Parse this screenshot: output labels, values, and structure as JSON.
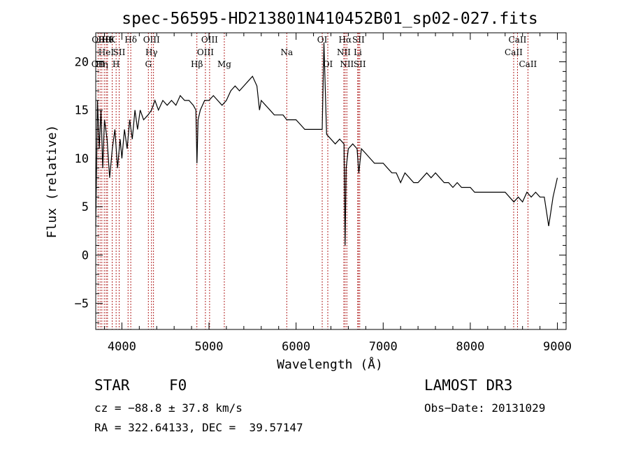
{
  "chart_data": {
    "type": "line",
    "title": "spec-56595-HD213801N410452B01_sp02-027.fits",
    "xlabel": "Wavelength (Å)",
    "ylabel": "Flux (relative)",
    "xlim": [
      3700,
      9100
    ],
    "ylim": [
      -7.7,
      23
    ],
    "xticks": [
      4000,
      5000,
      6000,
      7000,
      8000,
      9000
    ],
    "xtick_labels": [
      "4000",
      "5000",
      "6000",
      "7000",
      "8000",
      "9000"
    ],
    "yticks": [
      -5,
      0,
      5,
      10,
      15,
      20
    ],
    "ytick_labels": [
      "−5",
      "0",
      "5",
      "10",
      "15",
      "20"
    ],
    "grid": false,
    "series": [
      {
        "name": "flux",
        "x": [
          3700,
          3720,
          3740,
          3760,
          3780,
          3800,
          3830,
          3860,
          3890,
          3920,
          3950,
          3980,
          4000,
          4030,
          4060,
          4090,
          4120,
          4150,
          4180,
          4210,
          4250,
          4300,
          4340,
          4380,
          4420,
          4470,
          4520,
          4570,
          4620,
          4670,
          4720,
          4770,
          4820,
          4850,
          4862,
          4875,
          4900,
          4950,
          5000,
          5050,
          5100,
          5150,
          5200,
          5250,
          5300,
          5350,
          5400,
          5450,
          5500,
          5550,
          5580,
          5600,
          5650,
          5700,
          5750,
          5800,
          5850,
          5893,
          5950,
          6000,
          6050,
          6100,
          6150,
          6200,
          6250,
          6300,
          6320,
          6350,
          6400,
          6450,
          6500,
          6550,
          6563,
          6575,
          6600,
          6650,
          6700,
          6720,
          6750,
          6800,
          6850,
          6900,
          6950,
          7000,
          7050,
          7100,
          7150,
          7200,
          7250,
          7300,
          7350,
          7400,
          7450,
          7500,
          7550,
          7600,
          7650,
          7700,
          7750,
          7800,
          7850,
          7900,
          7950,
          8000,
          8050,
          8100,
          8150,
          8200,
          8250,
          8300,
          8350,
          8400,
          8450,
          8500,
          8550,
          8600,
          8650,
          8700,
          8750,
          8800,
          8850,
          8900,
          8950,
          9000
        ],
        "values": [
          3,
          16,
          11,
          15,
          9,
          14,
          12,
          8,
          11,
          13,
          9,
          12,
          10,
          13,
          11,
          14,
          12,
          15,
          13,
          15,
          14,
          14.5,
          15,
          16,
          15,
          16,
          15.5,
          16,
          15.5,
          16.5,
          16,
          16,
          15.5,
          15,
          9.5,
          14,
          15,
          16,
          16,
          16.5,
          16,
          15.5,
          16,
          17,
          17.5,
          17,
          17.5,
          18,
          18.5,
          17.5,
          15,
          16,
          15.5,
          15,
          14.5,
          14.5,
          14.5,
          14,
          14,
          14,
          13.5,
          13,
          13,
          13,
          13,
          13,
          22,
          12.5,
          12,
          11.5,
          12,
          11.5,
          1,
          9,
          11,
          11.5,
          11,
          8.5,
          11,
          10.5,
          10,
          9.5,
          9.5,
          9.5,
          9,
          8.5,
          8.5,
          7.5,
          8.5,
          8,
          7.5,
          7.5,
          8,
          8.5,
          8,
          8.5,
          8,
          7.5,
          7.5,
          7,
          7.5,
          7,
          7,
          7,
          6.5,
          6.5,
          6.5,
          6.5,
          6.5,
          6.5,
          6.5,
          6.5,
          6,
          5.5,
          6,
          5.5,
          6.5,
          6,
          6.5,
          6,
          6,
          3,
          6,
          8
        ]
      }
    ],
    "lines": [
      {
        "x": 3727,
        "labels": [
          "OII"
        ],
        "rows": [
          2
        ]
      },
      {
        "x": 3750,
        "labels": [
          "OIII"
        ],
        "rows": [
          0
        ]
      },
      {
        "x": 3770,
        "labels": [
          "Hη"
        ],
        "rows": [
          2
        ]
      },
      {
        "x": 3798,
        "labels": [
          "Hθ"
        ],
        "rows": [
          0
        ]
      },
      {
        "x": 3820,
        "labels": [
          "HeI"
        ],
        "rows": [
          1
        ]
      },
      {
        "x": 3835,
        "labels": [
          "Hθ"
        ],
        "rows": [
          0
        ]
      },
      {
        "x": 3889,
        "labels": [
          "K"
        ],
        "rows": [
          0
        ]
      },
      {
        "x": 3934,
        "labels": [
          "H"
        ],
        "rows": [
          2
        ]
      },
      {
        "x": 3969,
        "labels": [
          "SII"
        ],
        "rows": [
          1
        ]
      },
      {
        "x": 4071,
        "labels": [],
        "rows": []
      },
      {
        "x": 4102,
        "labels": [
          "Hδ"
        ],
        "rows": [
          0
        ]
      },
      {
        "x": 4304,
        "labels": [
          "G"
        ],
        "rows": [
          2
        ]
      },
      {
        "x": 4340,
        "labels": [
          "OIII",
          "Hγ"
        ],
        "rows": [
          0,
          1
        ]
      },
      {
        "x": 4363,
        "labels": [],
        "rows": []
      },
      {
        "x": 4861,
        "labels": [
          "Hβ"
        ],
        "rows": [
          2
        ]
      },
      {
        "x": 4959,
        "labels": [
          "OIII"
        ],
        "rows": [
          1
        ]
      },
      {
        "x": 5007,
        "labels": [
          "OIII"
        ],
        "rows": [
          0
        ]
      },
      {
        "x": 5176,
        "labels": [
          "Mg"
        ],
        "rows": [
          2
        ]
      },
      {
        "x": 5893,
        "labels": [
          "Na"
        ],
        "rows": [
          1
        ]
      },
      {
        "x": 6300,
        "labels": [
          "OI"
        ],
        "rows": [
          0
        ]
      },
      {
        "x": 6364,
        "labels": [
          "OI"
        ],
        "rows": [
          2
        ]
      },
      {
        "x": 6548,
        "labels": [
          "NII"
        ],
        "rows": [
          1
        ]
      },
      {
        "x": 6563,
        "labels": [
          "Hα"
        ],
        "rows": [
          0
        ]
      },
      {
        "x": 6583,
        "labels": [
          "NII"
        ],
        "rows": [
          2
        ]
      },
      {
        "x": 6708,
        "labels": [
          "Li"
        ],
        "rows": [
          1
        ]
      },
      {
        "x": 6716,
        "labels": [
          "SII"
        ],
        "rows": [
          0
        ]
      },
      {
        "x": 6731,
        "labels": [
          "SII"
        ],
        "rows": [
          2
        ]
      },
      {
        "x": 8498,
        "labels": [
          "CaII"
        ],
        "rows": [
          1
        ]
      },
      {
        "x": 8542,
        "labels": [
          "CaII"
        ],
        "rows": [
          0
        ]
      },
      {
        "x": 8662,
        "labels": [
          "CaII"
        ],
        "rows": [
          2
        ]
      }
    ]
  },
  "info": {
    "object_class": "STAR",
    "subclass": "F0",
    "cz": "cz = −88.8 ± 37.8 km/s",
    "coords": "RA = 322.64133, DEC =  39.57147",
    "survey": "LAMOST DR3",
    "obs_date": "Obs−Date: 20131029"
  }
}
